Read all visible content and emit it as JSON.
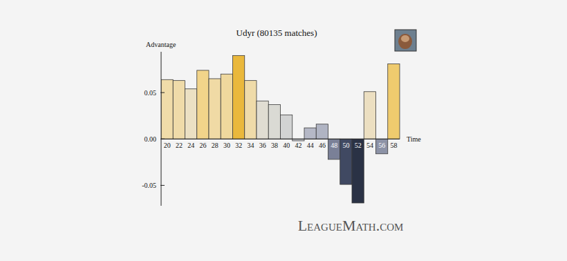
{
  "chart_data": {
    "type": "bar",
    "title": "Udyr (80135 matches)",
    "y_label": "Advantage",
    "x_label": "Time",
    "categories": [
      "20",
      "22",
      "24",
      "26",
      "28",
      "30",
      "32",
      "34",
      "36",
      "38",
      "40",
      "42",
      "44",
      "46",
      "48",
      "50",
      "52",
      "54",
      "56",
      "58"
    ],
    "values": [
      0.064,
      0.063,
      0.054,
      0.074,
      0.065,
      0.07,
      0.09,
      0.063,
      0.041,
      0.037,
      0.026,
      -0.002,
      0.012,
      0.016,
      -0.022,
      -0.049,
      -0.069,
      0.051,
      -0.016,
      0.081
    ],
    "colors": [
      "#f0dca9",
      "#efdba9",
      "#ebe0c3",
      "#f2d48a",
      "#f0daa5",
      "#efd89d",
      "#eab83c",
      "#efdba9",
      "#e0ddd2",
      "#dadad4",
      "#d2d3d3",
      "#c8cad0",
      "#b5b8c6",
      "#b0b4c3",
      "#7a8097",
      "#404962",
      "#2a3245",
      "#ecdfc1",
      "#8c92a6",
      "#efcb6e"
    ],
    "ylim": [
      -0.072,
      0.094
    ],
    "yticks": [
      -0.05,
      {
        "value": 0,
        "label": "0.00"
      },
      0.05
    ],
    "annotations": [
      "LeagueMath.com"
    ]
  }
}
